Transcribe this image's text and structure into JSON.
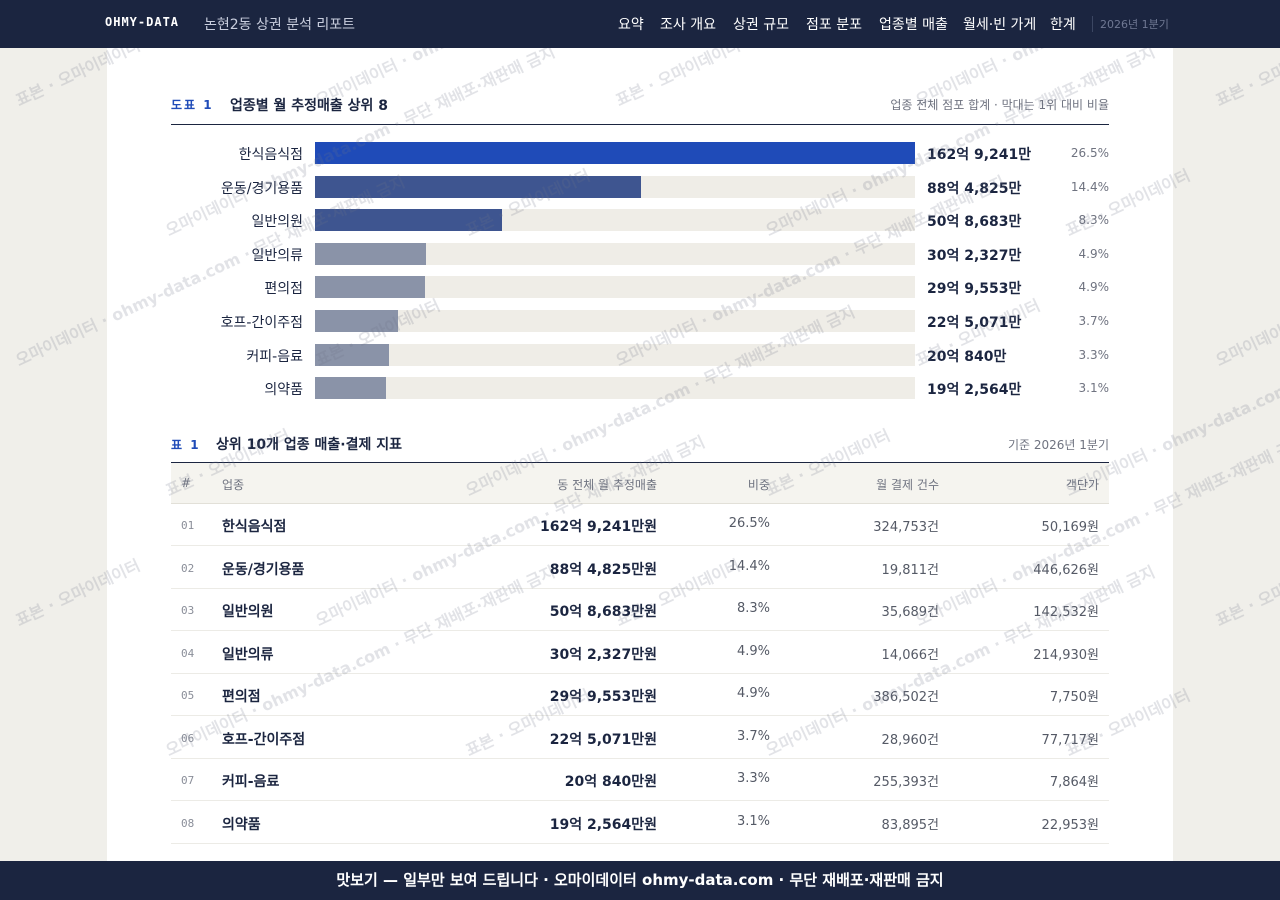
{
  "header": {
    "logo": "OHMY-DATA",
    "title": "논현2동 상권 분석 리포트",
    "nav": [
      "요약",
      "조사 개요",
      "상권 규모",
      "점포 분포",
      "업종별 매출",
      "월세·빈 가게",
      "한계"
    ],
    "period": "2026년 1분기"
  },
  "chart_data": {
    "type": "bar",
    "label": "도표 1",
    "title": "업종별 월 추정매출 상위 8",
    "note": "업종 전체 점포 합계 · 막대는 1위 대비 비율",
    "categories": [
      "한식음식점",
      "운동/경기용품",
      "일반의원",
      "일반의류",
      "편의점",
      "호프-간이주점",
      "커피-음료",
      "의약품"
    ],
    "values": [
      1629241,
      884825,
      508683,
      302327,
      299553,
      225071,
      200840,
      192564
    ],
    "value_labels": [
      "162억 9,241만",
      "88억 4,825만",
      "50억 8,683만",
      "30억 2,327만",
      "29억 9,553만",
      "22억 5,071만",
      "20억 840만",
      "19억 2,564만"
    ],
    "share_labels": [
      "26.5%",
      "14.4%",
      "8.3%",
      "4.9%",
      "4.9%",
      "3.7%",
      "3.3%",
      "3.1%"
    ],
    "colors": [
      "#1f4bb8",
      "#3e5590",
      "#3e5590",
      "#8a93a8",
      "#8a93a8",
      "#8a93a8",
      "#8a93a8",
      "#8a93a8"
    ],
    "track_color": "#efede7"
  },
  "table": {
    "label": "표 1",
    "title": "상위 10개 업종 매출·결제 지표",
    "note": "기준 2026년 1분기",
    "columns": [
      "#",
      "업종",
      "동 전체 월 추정매출",
      "비중",
      "월 결제 건수",
      "객단가"
    ],
    "rows": [
      [
        "01",
        "한식음식점",
        "162억 9,241만원",
        "26.5%",
        "324,753건",
        "50,169원"
      ],
      [
        "02",
        "운동/경기용품",
        "88억 4,825만원",
        "14.4%",
        "19,811건",
        "446,626원"
      ],
      [
        "03",
        "일반의원",
        "50억 8,683만원",
        "8.3%",
        "35,689건",
        "142,532원"
      ],
      [
        "04",
        "일반의류",
        "30억 2,327만원",
        "4.9%",
        "14,066건",
        "214,930원"
      ],
      [
        "05",
        "편의점",
        "29억 9,553만원",
        "4.9%",
        "386,502건",
        "7,750원"
      ],
      [
        "06",
        "호프-간이주점",
        "22억 5,071만원",
        "3.7%",
        "28,960건",
        "77,717원"
      ],
      [
        "07",
        "커피-음료",
        "20억 840만원",
        "3.3%",
        "255,393건",
        "7,864원"
      ],
      [
        "08",
        "의약품",
        "19억 2,564만원",
        "3.1%",
        "83,895건",
        "22,953원"
      ]
    ]
  },
  "watermark": [
    "표본 · 오마이데이터",
    "오마이데이터 · ohmy-data.com · 무단 재배포·재판매 금지"
  ],
  "footer": "맛보기 — 일부만 보여 드립니다 · 오마이데이터 ohmy-data.com · 무단 재배포·재판매 금지"
}
